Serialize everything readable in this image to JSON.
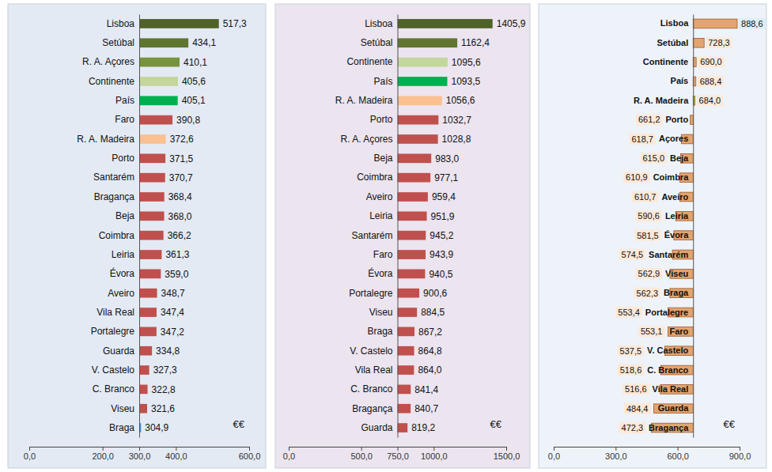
{
  "chart_data": [
    {
      "type": "bar",
      "orientation": "horizontal",
      "data_labels": true,
      "categories": [
        "Lisboa",
        "Setúbal",
        "R. A. Açores",
        "Continente",
        "País",
        "Faro",
        "R. A. Madeira",
        "Porto",
        "Santarém",
        "Bragança",
        "Beja",
        "Coimbra",
        "Leiria",
        "Évora",
        "Aveiro",
        "Vila Real",
        "Portalegre",
        "Guarda",
        "V. Castelo",
        "C. Branco",
        "Viseu",
        "Braga"
      ],
      "values": [
        517.3,
        434.1,
        410.1,
        405.6,
        405.1,
        390.8,
        372.6,
        371.5,
        370.7,
        368.4,
        368.0,
        366.2,
        361.3,
        359.0,
        348.7,
        347.4,
        347.2,
        334.8,
        327.3,
        322.8,
        321.6,
        304.9
      ],
      "value_labels": [
        "517,3",
        "434,1",
        "410,1",
        "405,6",
        "405,1",
        "390,8",
        "372,6",
        "371,5",
        "370,7",
        "368,4",
        "368,0",
        "366,2",
        "361,3",
        "359,0",
        "348,7",
        "347,4",
        "347,2",
        "334,8",
        "327,3",
        "322,8",
        "321,6",
        "304,9"
      ],
      "colors": [
        "#4f6228",
        "#5f7530",
        "#77933c",
        "#c3d69b",
        "#00b050",
        "#c0504d",
        "#fac090",
        "#c0504d",
        "#c0504d",
        "#c0504d",
        "#c0504d",
        "#c0504d",
        "#c0504d",
        "#c0504d",
        "#c0504d",
        "#c0504d",
        "#c0504d",
        "#c0504d",
        "#c0504d",
        "#c0504d",
        "#c0504d",
        "#4f81bd"
      ],
      "base": 300,
      "xlim": [
        0,
        600
      ],
      "xticks": [
        {
          "value": 0,
          "label": "0,0"
        },
        {
          "value": 200,
          "label": "200,0"
        },
        {
          "value": 300,
          "label": "300,0"
        },
        {
          "value": 400,
          "label": "400,0"
        },
        {
          "value": 600,
          "label": "600,0"
        }
      ],
      "x_label": "€€"
    },
    {
      "type": "bar",
      "orientation": "horizontal",
      "data_labels": true,
      "categories": [
        "Lisboa",
        "Setúbal",
        "Continente",
        "País",
        "R. A. Madeira",
        "Porto",
        "R. A. Açores",
        "Beja",
        "Coimbra",
        "Aveiro",
        "Leiria",
        "Santarém",
        "Faro",
        "Évora",
        "Portalegre",
        "Viseu",
        "Braga",
        "V. Castelo",
        "Vila Real",
        "C. Branco",
        "Bragança",
        "Guarda"
      ],
      "values": [
        1405.9,
        1162.4,
        1095.6,
        1093.5,
        1056.6,
        1032.7,
        1028.8,
        983.0,
        977.1,
        959.4,
        951.9,
        945.2,
        943.9,
        940.5,
        900.6,
        884.5,
        867.2,
        864.8,
        864.0,
        841.4,
        840.7,
        819.2
      ],
      "value_labels": [
        "1405,9",
        "1162,4",
        "1095,6",
        "1093,5",
        "1056,6",
        "1032,7",
        "1028,8",
        "983,0",
        "977,1",
        "959,4",
        "951,9",
        "945,2",
        "943,9",
        "940,5",
        "900,6",
        "884,5",
        "867,2",
        "864,8",
        "864,0",
        "841,4",
        "840,7",
        "819,2"
      ],
      "colors": [
        "#4f6228",
        "#5f7530",
        "#c3d69b",
        "#00b050",
        "#fac090",
        "#c0504d",
        "#c0504d",
        "#c0504d",
        "#c0504d",
        "#c0504d",
        "#c0504d",
        "#c0504d",
        "#c0504d",
        "#c0504d",
        "#c0504d",
        "#c0504d",
        "#c0504d",
        "#c0504d",
        "#c0504d",
        "#c0504d",
        "#c0504d",
        "#c0504d"
      ],
      "base": 750,
      "xlim": [
        0,
        1500
      ],
      "xticks": [
        {
          "value": 0,
          "label": "0,0"
        },
        {
          "value": 500,
          "label": "500,0"
        },
        {
          "value": 750,
          "label": "750,0"
        },
        {
          "value": 1000,
          "label": "1000,0"
        },
        {
          "value": 1500,
          "label": "1500,0"
        }
      ],
      "x_label": "€€"
    },
    {
      "type": "bar",
      "orientation": "horizontal",
      "data_labels": true,
      "categories": [
        "Lisboa",
        "Setúbal",
        "Continente",
        "País",
        "R. A. Madeira",
        "Porto",
        "Açores",
        "Beja",
        "Coimbra",
        "Aveiro",
        "Leiria",
        "Évora",
        "Santarém",
        "Viseu",
        "Braga",
        "Portalegre",
        "Faro",
        "V. Castelo",
        "C. Branco",
        "Vila Real",
        "Guarda",
        "Bragança"
      ],
      "values": [
        888.6,
        728.3,
        690.0,
        688.4,
        684.0,
        661.2,
        618.7,
        615.0,
        610.9,
        610.7,
        590.6,
        581.5,
        574.5,
        562.9,
        562.3,
        553.4,
        553.1,
        537.5,
        518.6,
        516.6,
        484.4,
        472.3
      ],
      "value_labels": [
        "888,6",
        "728,3",
        "690,0",
        "688,4",
        "684,0",
        "661,2",
        "618,7",
        "615,0",
        "610,9",
        "610,7",
        "590,6",
        "581,5",
        "574,5",
        "562,9",
        "562,3",
        "553,4",
        "553,1",
        "537,5",
        "518,6",
        "516,6",
        "484,4",
        "472,3"
      ],
      "colors": [
        "#e3a46f",
        "#e3a46f",
        "#e3a46f",
        "#e3a46f",
        "#92d050",
        "#e3a46f",
        "#e3a46f",
        "#e3a46f",
        "#e3a46f",
        "#e3a46f",
        "#e3a46f",
        "#e3a46f",
        "#e3a46f",
        "#e3a46f",
        "#e3a46f",
        "#e3a46f",
        "#e3a46f",
        "#e3a46f",
        "#e3a46f",
        "#e3a46f",
        "#e3a46f",
        "#e3a46f"
      ],
      "base": 675,
      "xlim": [
        0,
        900
      ],
      "xticks": [
        {
          "value": 0,
          "label": "0,0"
        },
        {
          "value": 300,
          "label": "300,0"
        },
        {
          "value": 600,
          "label": "600,0"
        },
        {
          "value": 900,
          "label": "900,0"
        }
      ],
      "x_label": "€€"
    }
  ]
}
